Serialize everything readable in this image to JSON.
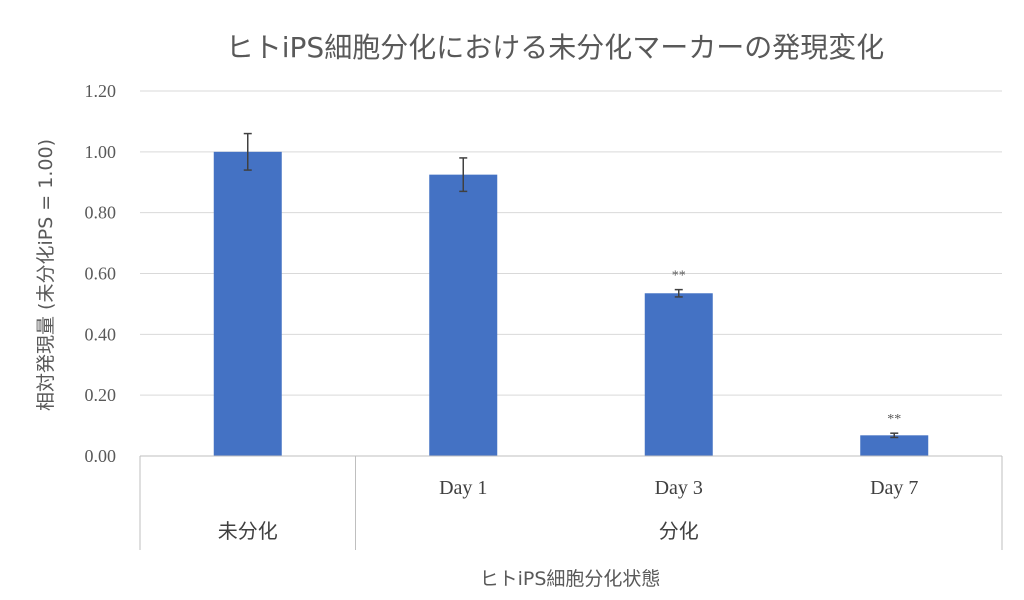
{
  "chart_data": {
    "type": "bar",
    "title": "ヒトiPS細胞分化における未分化マーカーの発現変化",
    "ylabel": "相対発現量 (未分化iPS = 1.00)",
    "xlabel": "ヒトiPS細胞分化状態",
    "ylim": [
      0,
      1.2
    ],
    "yticks": [
      "0.00",
      "0.20",
      "0.40",
      "0.60",
      "0.80",
      "1.00",
      "1.20"
    ],
    "grid": true,
    "categories": [
      "",
      "Day 1",
      "Day 3",
      "Day 7"
    ],
    "groups": [
      {
        "label": "未分化",
        "span": 1
      },
      {
        "label": "分化",
        "span": 3
      }
    ],
    "values": [
      1.0,
      0.925,
      0.535,
      0.068
    ],
    "errors": [
      0.06,
      0.055,
      0.012,
      0.007
    ],
    "annotations": [
      "",
      "",
      "**",
      "**"
    ],
    "bar_color": "#4472C4",
    "error_color": "#404040",
    "grid_color": "#D9D9D9",
    "axis_color": "#BFBFBF"
  }
}
